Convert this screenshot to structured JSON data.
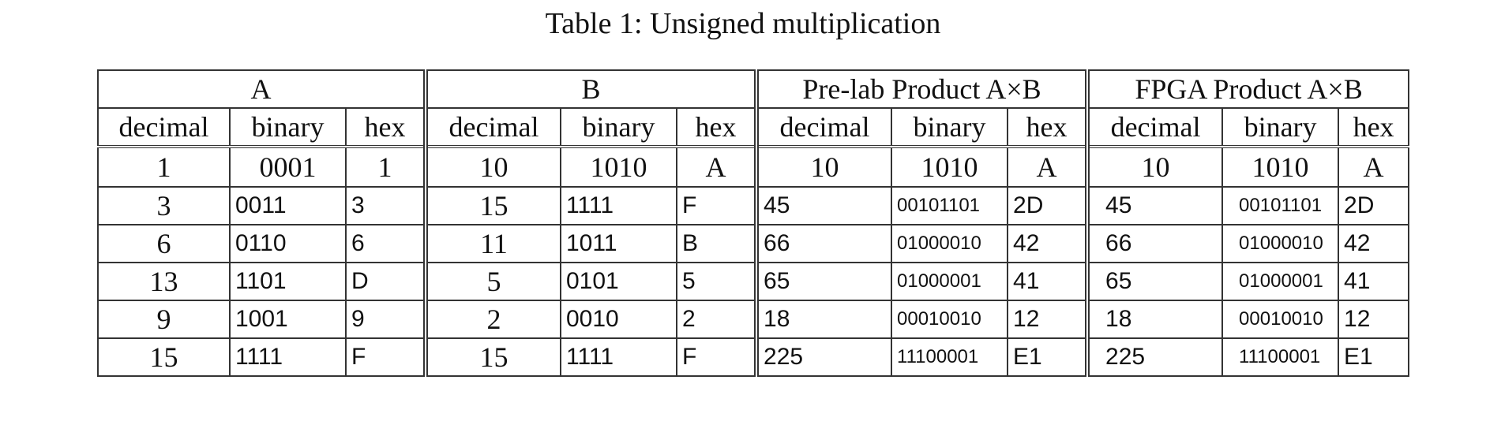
{
  "caption": "Table 1: Unsigned multiplication",
  "groups": [
    "A",
    "B",
    "Pre-lab Product A×B",
    "FPGA Product A×B"
  ],
  "subheaders": [
    "decimal",
    "binary",
    "hex"
  ],
  "rows": [
    [
      "1",
      "0001",
      "1",
      "10",
      "1010",
      "A",
      "10",
      "1010",
      "A",
      "10",
      "1010",
      "A"
    ],
    [
      "3",
      "0011",
      "3",
      "15",
      "1111",
      "F",
      "45",
      "00101101",
      "2D",
      "45",
      "00101101",
      "2D"
    ],
    [
      "6",
      "0110",
      "6",
      "11",
      "1011",
      "B",
      "66",
      "01000010",
      "42",
      "66",
      "01000010",
      "42"
    ],
    [
      "13",
      "1101",
      "D",
      "5",
      "0101",
      "5",
      "65",
      "01000001",
      "41",
      "65",
      "01000001",
      "41"
    ],
    [
      "9",
      "1001",
      "9",
      "2",
      "0010",
      "2",
      "18",
      "00010010",
      "12",
      "18",
      "00010010",
      "12"
    ],
    [
      "15",
      "1111",
      "F",
      "15",
      "1111",
      "F",
      "225",
      "11100001",
      "E1",
      "225",
      "11100001",
      "E1"
    ]
  ]
}
